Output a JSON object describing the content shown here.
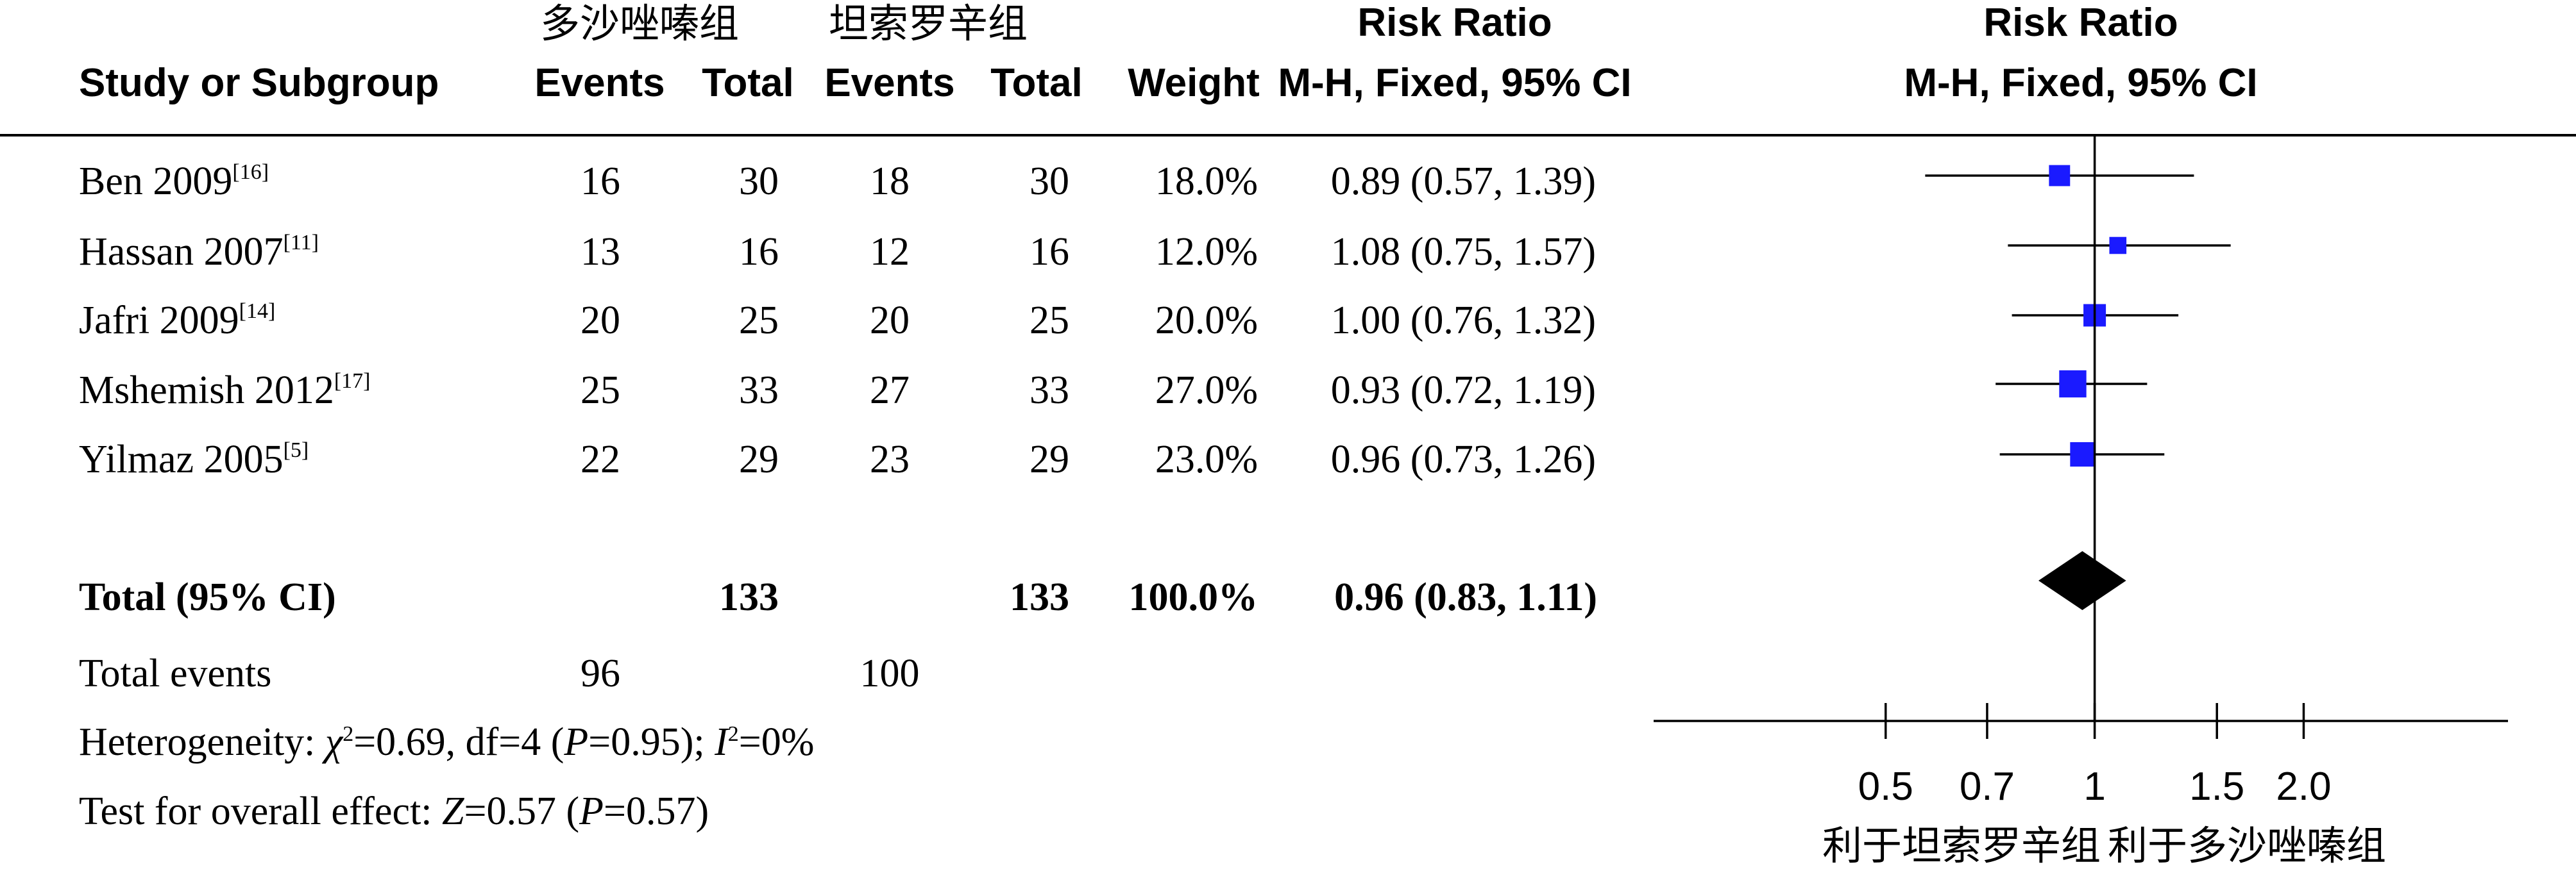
{
  "table": {
    "groups": {
      "experimental": "多沙唑嗪组",
      "control": "坦索罗辛组"
    },
    "headers": {
      "study": "Study or Subgroup",
      "events": "Events",
      "total": "Total",
      "weight": "Weight",
      "rr_title": "Risk Ratio",
      "rr_method": "M-H, Fixed, 95% CI"
    },
    "total_row": {
      "label": "Total (95% CI)",
      "exp_total": "133",
      "ctl_total": "133",
      "weight": "100.0%",
      "ci": "0.96 (0.83, 1.11)"
    },
    "total_events": {
      "label": "Total events",
      "exp": "96",
      "ctl": "100"
    },
    "heterogeneity": {
      "prefix": "Heterogeneity: ",
      "chi": "χ",
      "chi_val": "=0.69, df=4 (",
      "p": "P",
      "p_val": "=0.95); ",
      "i": "I",
      "i_val": "=0%"
    },
    "overall": {
      "prefix": "Test for overall effect: ",
      "z": "Z",
      "z_val": "=0.57 (",
      "p": "P",
      "p_val": "=0.57)"
    }
  },
  "chart_data": {
    "type": "forest",
    "title": "Risk Ratio",
    "subtitle": "M-H, Fixed, 95% CI",
    "x_scale": "log",
    "xlim": [
      0.5,
      2.0
    ],
    "ticks": [
      0.5,
      0.7,
      1,
      1.5,
      2.0
    ],
    "tick_labels": [
      "0.5",
      "0.7",
      "1",
      "1.5",
      "2.0"
    ],
    "favours_left": "利于坦索罗辛组",
    "favours_right": "利于多沙唑嗪组",
    "studies": [
      {
        "name": "Ben 2009",
        "ref": "[16]",
        "exp_events": "16",
        "exp_total": "30",
        "ctl_events": "18",
        "ctl_total": "30",
        "weight": "18.0%",
        "ci_text": "0.89 (0.57, 1.39)",
        "rr": 0.89,
        "lo": 0.57,
        "hi": 1.39,
        "w": 18.0
      },
      {
        "name": "Hassan 2007",
        "ref": "[11]",
        "exp_events": "13",
        "exp_total": "16",
        "ctl_events": "12",
        "ctl_total": "16",
        "weight": "12.0%",
        "ci_text": "1.08 (0.75, 1.57)",
        "rr": 1.08,
        "lo": 0.75,
        "hi": 1.57,
        "w": 12.0
      },
      {
        "name": "Jafri 2009",
        "ref": "[14]",
        "exp_events": "20",
        "exp_total": "25",
        "ctl_events": "20",
        "ctl_total": "25",
        "weight": "20.0%",
        "ci_text": "1.00 (0.76, 1.32)",
        "rr": 1.0,
        "lo": 0.76,
        "hi": 1.32,
        "w": 20.0
      },
      {
        "name": "Mshemish 2012",
        "ref": "[17]",
        "exp_events": "25",
        "exp_total": "33",
        "ctl_events": "27",
        "ctl_total": "33",
        "weight": "27.0%",
        "ci_text": "0.93 (0.72, 1.19)",
        "rr": 0.93,
        "lo": 0.72,
        "hi": 1.19,
        "w": 27.0
      },
      {
        "name": "Yilmaz 2005",
        "ref": "[5]",
        "exp_events": "22",
        "exp_total": "29",
        "ctl_events": "23",
        "ctl_total": "29",
        "weight": "23.0%",
        "ci_text": "0.96 (0.73, 1.26)",
        "rr": 0.96,
        "lo": 0.73,
        "hi": 1.26,
        "w": 23.0
      }
    ],
    "pooled": {
      "rr": 0.96,
      "lo": 0.83,
      "hi": 1.11
    }
  }
}
